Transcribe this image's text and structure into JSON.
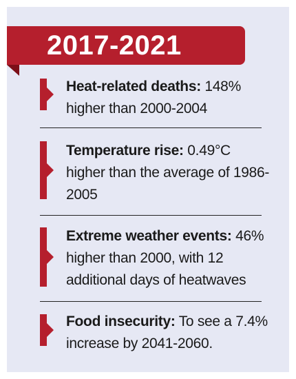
{
  "header": {
    "title": "2017-2021"
  },
  "items": [
    {
      "label": "Heat-related deaths:",
      "text": " 148% higher than 2000-2004"
    },
    {
      "label": "Temperature rise:",
      "text": " 0.49°C higher than the average of 1986-2005"
    },
    {
      "label": "Extreme weather events:",
      "text": " 46% higher than 2000, with 12 additional days of heatwaves"
    },
    {
      "label": "Food insecurity:",
      "text": " To see a 7.4% increase by 2041-2060."
    }
  ],
  "colors": {
    "accent": "#b51f2d",
    "panel": "#e6e8f4"
  }
}
